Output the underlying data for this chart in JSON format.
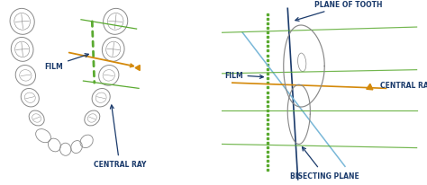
{
  "bg_color": "#ffffff",
  "text_color": "#1a3a6b",
  "film_color": "#5aaa30",
  "tooth_plane_color": "#1a3a6b",
  "bisecting_color": "#7ab8d8",
  "central_ray_color": "#d4890a",
  "tooth_outline_color": "#888888",
  "labels": {
    "film_left": "FILM",
    "central_ray_left": "CENTRAL RAY",
    "film_right": "FILM",
    "central_ray_right": "CENTRAL RAY",
    "plane_of_tooth": "PLANE OF TOOTH",
    "bisecting_plane": "BISECTING PLANE"
  },
  "label_fontsize": 5.5,
  "label_fontweight": "bold"
}
